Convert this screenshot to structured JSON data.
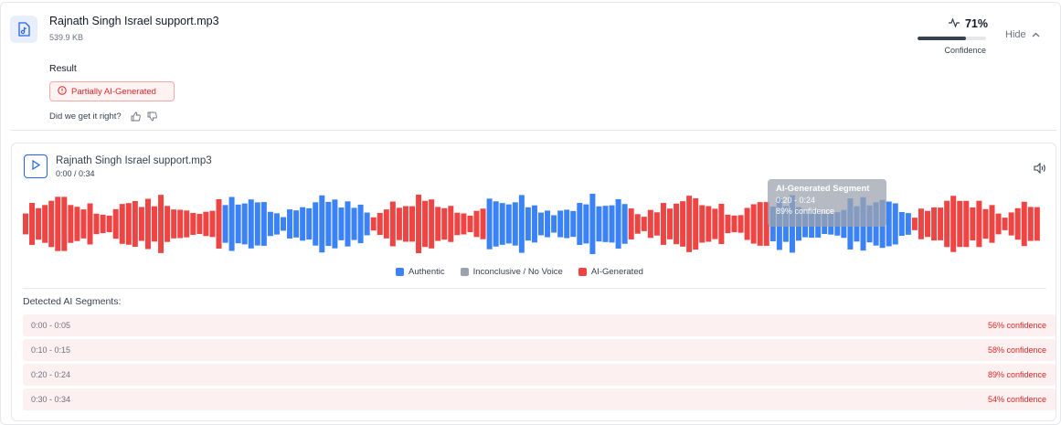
{
  "file": {
    "name": "Rajnath Singh Israel support.mp3",
    "size": "539.9 KB",
    "icon": "audio-file-icon"
  },
  "confidence": {
    "percent_text": "71%",
    "value": 0.71,
    "label": "Confidence",
    "icon": "activity-icon"
  },
  "hide_button": {
    "label": "Hide",
    "icon": "chevron-up-icon"
  },
  "result": {
    "label": "Result",
    "badge": "Partially AI-Generated",
    "badge_icon": "alert-circle-icon"
  },
  "feedback": {
    "question": "Did we get it right?"
  },
  "player": {
    "title": "Rajnath Singh Israel support.mp3",
    "time": "0:00 / 0:34",
    "play_icon": "play-icon",
    "volume_icon": "volume-icon"
  },
  "tooltip": {
    "title": "AI-Generated Segment",
    "range": "0:20 - 0:24",
    "confidence": "89% confidence"
  },
  "legend": [
    {
      "label": "Authentic",
      "color": "#3b82f6"
    },
    {
      "label": "Inconclusive / No Voice",
      "color": "#9ca3af"
    },
    {
      "label": "AI-Generated",
      "color": "#ef4444"
    }
  ],
  "segments_heading": "Detected AI Segments:",
  "segments": [
    {
      "range": "0:00 - 0:05",
      "confidence": "56% confidence"
    },
    {
      "range": "0:10 - 0:15",
      "confidence": "58% confidence"
    },
    {
      "range": "0:20 - 0:24",
      "confidence": "89% confidence"
    },
    {
      "range": "0:30 - 0:34",
      "confidence": "54% confidence"
    }
  ],
  "colors": {
    "authentic": "#3b82f6",
    "ai": "#ef4444",
    "inconclusive": "#9ca3af"
  }
}
